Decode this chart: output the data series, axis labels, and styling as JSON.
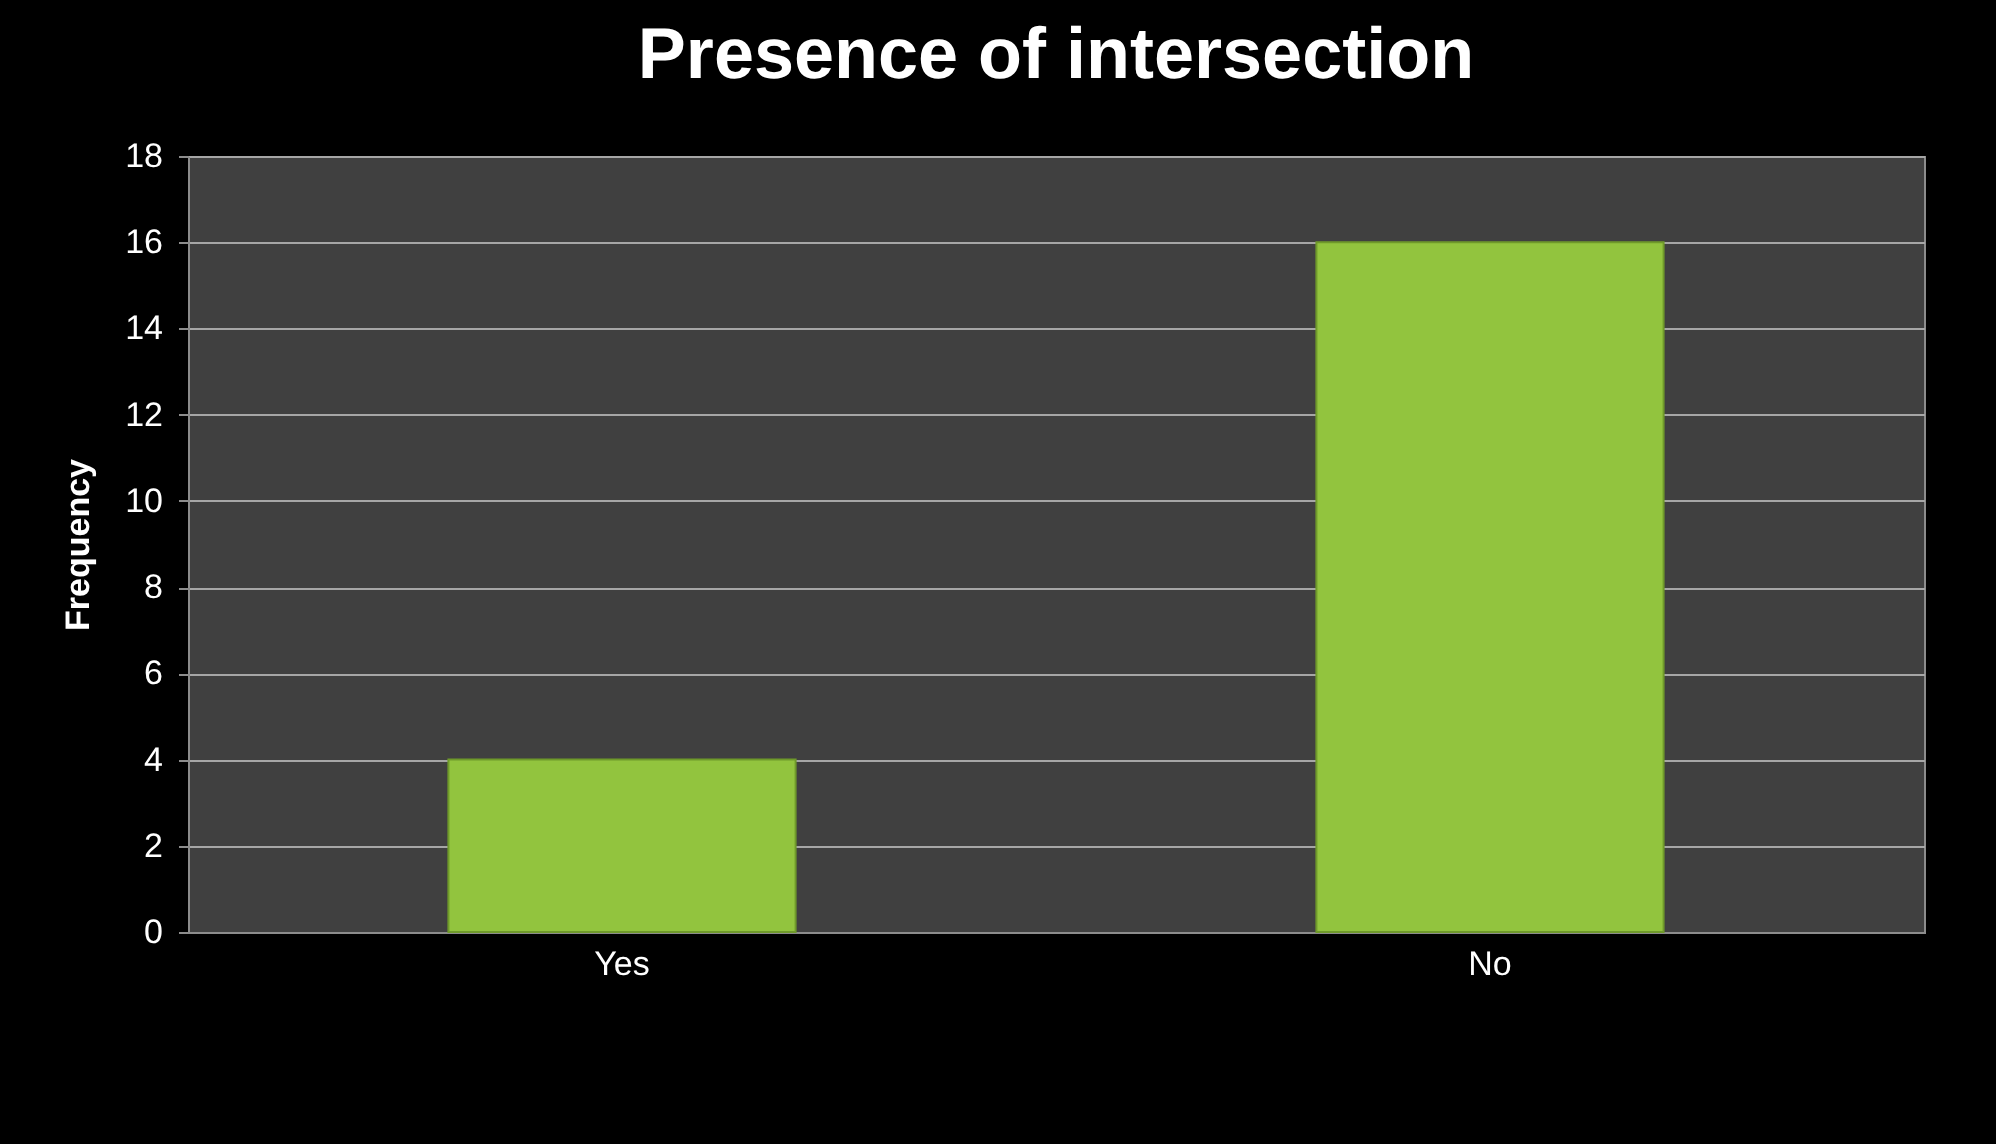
{
  "chart_data": {
    "type": "bar",
    "title": "Presence of intersection",
    "ylabel": "Frequency",
    "categories": [
      "Yes",
      "No"
    ],
    "series": [
      {
        "color": "#92c43e",
        "values": [
          4,
          16
        ]
      }
    ],
    "ylim": [
      0,
      18
    ],
    "yticks": [
      0,
      2,
      4,
      6,
      8,
      10,
      12,
      14,
      16,
      18
    ],
    "grid": "y",
    "legend": false
  }
}
